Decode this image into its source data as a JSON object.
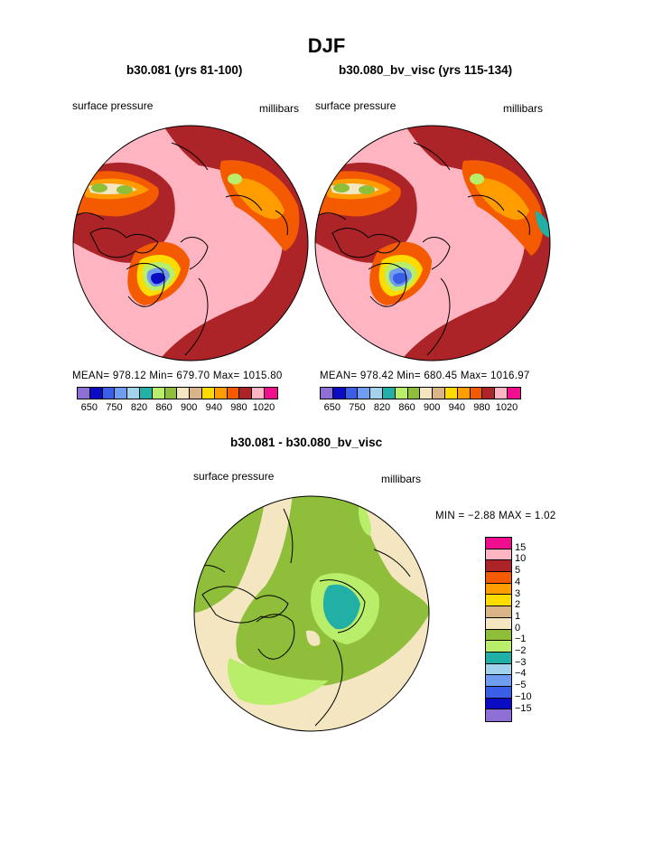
{
  "title": "DJF",
  "panels": [
    {
      "title": "b30.081 (yrs 81-100)",
      "left_label": "surface pressure",
      "right_label": "millibars",
      "stats": "MEAN= 978.12  Min= 679.70  Max= 1015.80"
    },
    {
      "title": "b30.080_bv_visc (yrs 115-134)",
      "left_label": "surface pressure",
      "right_label": "millibars",
      "stats": "MEAN= 978.42  Min= 680.45  Max= 1016.97"
    }
  ],
  "abs_colorbar": {
    "colors": [
      "#8e6fd6",
      "#0b0bc4",
      "#3a5ee6",
      "#6f9df0",
      "#a3d3ec",
      "#22b0a6",
      "#b8ee6a",
      "#8fbf3a",
      "#f3e6c0",
      "#d9b486",
      "#ffdb00",
      "#ff9d00",
      "#f45b00",
      "#ac2427",
      "#ffb4c2",
      "#f00e8e"
    ],
    "labels": [
      "650",
      "750",
      "820",
      "860",
      "900",
      "940",
      "980",
      "1020"
    ]
  },
  "diff": {
    "title": "b30.081 - b30.080_bv_visc",
    "left_label": "surface pressure",
    "right_label": "millibars",
    "stats": "MIN =   −2.88  MAX =     1.02",
    "colorbar": {
      "colors_top_to_bottom": [
        "#f00e8e",
        "#ffb4c2",
        "#ac2427",
        "#f45b00",
        "#ff9d00",
        "#ffdb00",
        "#d9b486",
        "#f3e6c0",
        "#8fbf3a",
        "#b8ee6a",
        "#22b0a6",
        "#a3d3ec",
        "#6f9df0",
        "#3a5ee6",
        "#0b0bc4",
        "#8e6fd6"
      ],
      "labels_top_to_bottom": [
        "15",
        "10",
        "5",
        "4",
        "3",
        "2",
        "1",
        "0",
        "−1",
        "−2",
        "−3",
        "−4",
        "−5",
        "−10",
        "−15"
      ]
    }
  }
}
